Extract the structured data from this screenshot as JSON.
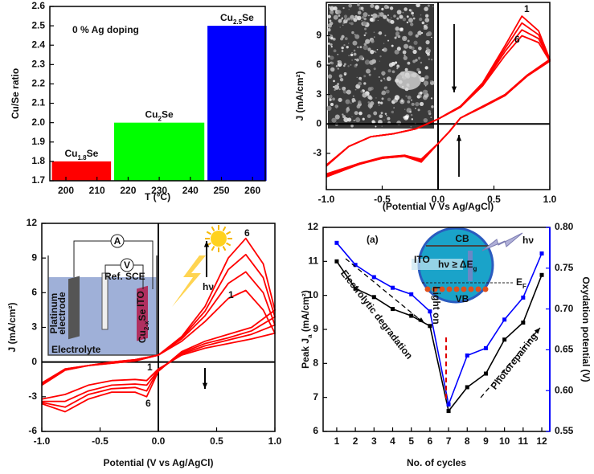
{
  "chart_data": [
    {
      "type": "bar",
      "ylabel": "Cu/Se ratio",
      "xlabel": "T (°C)",
      "annotation": "0 % Ag doping",
      "categories": [
        [
          "Cu",
          "1.8",
          "Se"
        ],
        [
          "Cu",
          "2",
          "Se"
        ],
        [
          "Cu",
          "2.5",
          "Se"
        ]
      ],
      "values": [
        1.8,
        2.0,
        2.5
      ],
      "colors": [
        "#ff0000",
        "#00ff00",
        "#0000ff"
      ],
      "x_spans": [
        [
          200,
          210
        ],
        [
          220,
          240
        ],
        [
          250,
          260
        ]
      ],
      "xticks": [
        200,
        210,
        220,
        230,
        240,
        250,
        260
      ],
      "ylim": [
        1.7,
        2.6
      ],
      "yticks": [
        1.7,
        1.8,
        1.9,
        {
          "value": 2,
          "label": "2.0"
        },
        2.1,
        2.2,
        2.3,
        2.4,
        2.5,
        2.6
      ]
    },
    {
      "type": "line",
      "xlabel": "(Potential V Vs Ag/AgCl)",
      "ylabel": "J (mA/cm²)",
      "color": "#ff0000",
      "annotations": [
        "1",
        "6"
      ],
      "xlim": [
        -1,
        1
      ],
      "ylim": [
        -6.7,
        12.4
      ],
      "xticks": [
        {
          "value": -1,
          "label": "-1.0"
        },
        {
          "value": -0.5,
          "label": "-0.5"
        },
        {
          "value": 0,
          "label": "0.0"
        },
        {
          "value": 0.5,
          "label": "0.5"
        },
        {
          "value": 1,
          "label": "1.0"
        }
      ],
      "yticks": [
        -3,
        0,
        3,
        6,
        9
      ],
      "x": [
        -1,
        -0.8,
        -0.6,
        -0.4,
        -0.2,
        0,
        0.2,
        0.4,
        0.6,
        0.75,
        0.9,
        1,
        0.8,
        0.6,
        0.4,
        0.2,
        0.1,
        0,
        -0.15,
        -0.3,
        -0.5,
        -0.7,
        -1
      ],
      "series": [
        {
          "values": [
            -4.3,
            -2.3,
            -1.3,
            -1.0,
            -0.5,
            0.5,
            1.8,
            4.2,
            8.0,
            11.0,
            9.5,
            6.6,
            5.0,
            3.0,
            1.8,
            0.6,
            -0.8,
            -2.0,
            -3.9,
            -3.3,
            -3.5,
            -4.1,
            -5.4
          ]
        },
        {
          "values": [
            -4.3,
            -2.3,
            -1.3,
            -1.0,
            -0.5,
            0.5,
            1.8,
            4.1,
            7.7,
            10.3,
            9.1,
            6.5,
            5.0,
            3.0,
            1.8,
            0.6,
            -0.8,
            -2.0,
            -3.8,
            -3.3,
            -3.5,
            -4.1,
            -5.3
          ]
        },
        {
          "values": [
            -4.2,
            -2.3,
            -1.3,
            -1.0,
            -0.5,
            0.5,
            1.7,
            4.0,
            7.4,
            9.6,
            8.7,
            6.5,
            4.9,
            2.9,
            1.8,
            0.6,
            -0.8,
            -2.0,
            -3.7,
            -3.2,
            -3.5,
            -4.0,
            -5.2
          ]
        },
        {
          "values": [
            -4.2,
            -2.3,
            -1.3,
            -1.0,
            -0.5,
            0.5,
            1.7,
            3.9,
            7.0,
            9.0,
            8.3,
            6.4,
            4.9,
            2.9,
            1.7,
            0.6,
            -0.8,
            -2.0,
            -3.6,
            -3.2,
            -3.4,
            -4.0,
            -5.1
          ]
        }
      ]
    },
    {
      "type": "line",
      "xlabel": "Potential (V vs Ag/AgCl)",
      "ylabel": "J (mA/cm²)",
      "color": "#ff0000",
      "annotations": [
        "6",
        "1",
        "1",
        "6",
        "hν"
      ],
      "inset_labels": [
        "A",
        "V",
        "Ref. SCE",
        "Platinum",
        "electrode",
        "Electrolyte",
        "ITO",
        [
          "Cu",
          "2-x",
          "Se"
        ]
      ],
      "xlim": [
        -1,
        1
      ],
      "ylim": [
        -6,
        12
      ],
      "xticks": [
        {
          "value": -1,
          "label": "-1.0"
        },
        {
          "value": -0.5,
          "label": "-0.5"
        },
        {
          "value": 0,
          "label": "0.0"
        },
        {
          "value": 0.5,
          "label": "0.5"
        },
        {
          "value": 1,
          "label": "1.0"
        }
      ],
      "yticks": [
        -6,
        -3,
        0,
        3,
        6,
        9,
        12
      ],
      "x": [
        -1,
        -0.8,
        -0.6,
        -0.4,
        -0.2,
        0,
        0.2,
        0.4,
        0.6,
        0.75,
        0.9,
        1,
        0.8,
        0.6,
        0.4,
        0.2,
        0,
        -0.1,
        -0.2,
        -0.4,
        -0.6,
        -0.8,
        -1
      ],
      "series": [
        {
          "values": [
            -1.8,
            -0.6,
            -0.3,
            -0.1,
            0.1,
            0.6,
            1.8,
            3.5,
            5.5,
            6.2,
            4.5,
            2.5,
            2.0,
            1.6,
            1.2,
            0.6,
            -0.6,
            -1.6,
            -1.5,
            -1.6,
            -2.0,
            -2.8,
            -3.2
          ]
        },
        {
          "values": [
            -1.9,
            -0.6,
            -0.3,
            -0.1,
            0.1,
            0.6,
            2.0,
            4.0,
            6.8,
            7.8,
            6.0,
            3.2,
            2.4,
            1.9,
            1.4,
            0.7,
            -0.7,
            -2.0,
            -1.9,
            -2.0,
            -2.5,
            -3.4,
            -3.4
          ]
        },
        {
          "values": [
            -2.0,
            -0.7,
            -0.3,
            0,
            0.2,
            0.6,
            2.1,
            4.4,
            8.0,
            9.3,
            7.3,
            3.9,
            2.7,
            2.1,
            1.6,
            0.8,
            -0.7,
            -2.5,
            -2.2,
            -2.3,
            -2.8,
            -3.9,
            -3.5
          ]
        },
        {
          "values": [
            -2.0,
            -0.7,
            -0.3,
            0,
            0.2,
            0.6,
            2.2,
            4.8,
            9.0,
            10.7,
            8.5,
            4.5,
            3.0,
            2.4,
            1.8,
            0.9,
            -0.8,
            -3.0,
            -2.6,
            -2.6,
            -3.2,
            -4.3,
            -3.6
          ]
        }
      ]
    },
    {
      "type": "line",
      "xlabel": "No. of cycles",
      "ylabel": [
        "Peak J",
        "a",
        " (mA/cm²)"
      ],
      "y2label": "Oxydation potential (V)",
      "annotations": [
        "(a)",
        "Electrolytic degradation",
        "Light on",
        "Photorepairing"
      ],
      "inset_labels": [
        "CB",
        "VB",
        [
          "hν ≥ ΔE",
          "g"
        ],
        "ITO",
        [
          "E",
          "F"
        ],
        "hν"
      ],
      "xlim": [
        0.27,
        12.43
      ],
      "ylim": [
        6,
        12
      ],
      "y2lim": [
        0.55,
        0.8
      ],
      "xticks": [
        1,
        2,
        3,
        4,
        5,
        6,
        7,
        8,
        9,
        10,
        11,
        12
      ],
      "yticks": [
        6,
        7,
        8,
        9,
        10,
        11,
        12
      ],
      "y2ticks": [
        0.55,
        {
          "value": 0.6,
          "label": "0.60"
        },
        0.65,
        {
          "value": 0.7,
          "label": "0.70"
        },
        0.75,
        {
          "value": 0.8,
          "label": "0.80"
        }
      ],
      "x": [
        1,
        2,
        3,
        4,
        5,
        6,
        7,
        8,
        9,
        10,
        11,
        12
      ],
      "series": [
        {
          "color": "#000000",
          "values": [
            11.0,
            10.2,
            9.95,
            9.6,
            9.4,
            9.1,
            6.6,
            7.3,
            7.7,
            8.7,
            9.2,
            10.6
          ]
        },
        {
          "color": "#0000ff",
          "axis": "y2",
          "values": [
            0.781,
            0.754,
            0.739,
            0.726,
            0.718,
            0.697,
            0.583,
            0.643,
            0.652,
            0.687,
            0.714,
            0.768
          ]
        }
      ]
    }
  ]
}
